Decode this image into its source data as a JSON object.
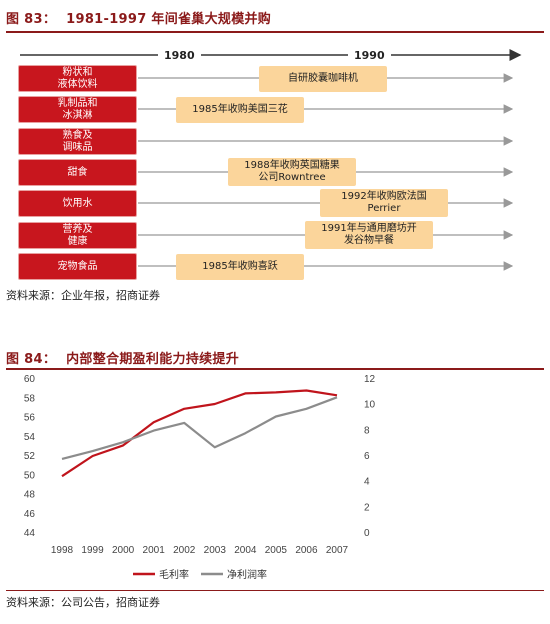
{
  "figure83": {
    "title_num": "图 83：",
    "title_text": "1981-1997 年间雀巢大规模并购",
    "years": [
      "1980",
      "1990"
    ],
    "categories": [
      {
        "label": "粉状和\n液体饮料",
        "event": "自研胶囊咖啡机"
      },
      {
        "label": "乳制品和\n冰淇淋",
        "event": "1985年收购美国三花"
      },
      {
        "label": "熟食及\n调味品",
        "event": ""
      },
      {
        "label": "甜食",
        "event": "1988年收购英国糖果\n公司Rowntree"
      },
      {
        "label": "饮用水",
        "event": "1992年收购欧法国\nPerrier"
      },
      {
        "label": "营养及\n健康",
        "event": "1991年与通用磨坊开\n发谷物早餐"
      },
      {
        "label": "宠物食品",
        "event": "1985年收购喜跃"
      }
    ],
    "source": "资料来源：企业年报，招商证券"
  },
  "figure84": {
    "title_num": "图 84：",
    "title_text": "内部整合期盈利能力持续提升",
    "source": "资料来源：公司公告，招商证券"
  },
  "chart_data": {
    "type": "line",
    "title": "内部整合期盈利能力持续提升",
    "categories": [
      "1998",
      "1999",
      "2000",
      "2001",
      "2002",
      "2003",
      "2004",
      "2005",
      "2006",
      "2007"
    ],
    "series": [
      {
        "name": "毛利率",
        "axis": "left",
        "color": "#c0141c",
        "values": [
          49.8,
          51.9,
          53.0,
          55.4,
          56.8,
          57.3,
          58.4,
          58.5,
          58.7,
          58.2
        ]
      },
      {
        "name": "净利润率",
        "axis": "right",
        "color": "#8c8c8c",
        "values": [
          5.7,
          6.3,
          7.0,
          7.9,
          8.5,
          6.6,
          7.7,
          9.0,
          9.6,
          10.5
        ]
      }
    ],
    "y_left": {
      "ylim": [
        44,
        60
      ],
      "ticks": [
        44,
        46,
        48,
        50,
        52,
        54,
        56,
        58,
        60
      ]
    },
    "y_right": {
      "ylim": [
        0,
        12
      ],
      "ticks": [
        0,
        2,
        4,
        6,
        8,
        10,
        12
      ]
    },
    "grid": false,
    "legend_position": "bottom"
  }
}
